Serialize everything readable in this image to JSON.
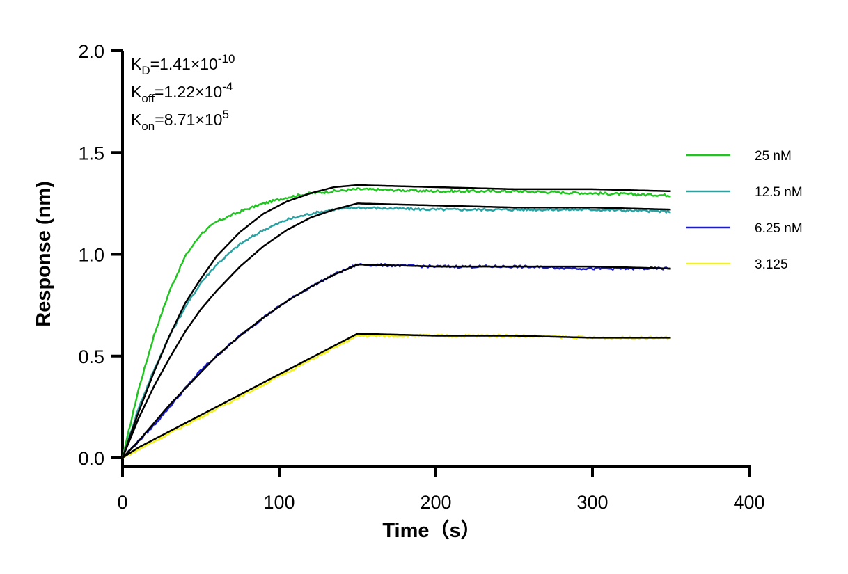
{
  "chart_data": {
    "type": "line",
    "xlabel": "Time（s）",
    "ylabel": "Response (nm)",
    "xlim": [
      0,
      400
    ],
    "ylim": [
      0,
      2.0
    ],
    "xticks": [
      "0",
      "100",
      "200",
      "300",
      "400"
    ],
    "yticks": [
      "0.0",
      "0.5",
      "1.0",
      "1.5",
      "2.0"
    ],
    "grid": false,
    "legend_position": "right",
    "association_end": 150,
    "dissociation_end": 350,
    "fit_color": "#000000",
    "series": [
      {
        "name": "25 nM",
        "color": "#22c422",
        "x": [
          0,
          10,
          20,
          30,
          40,
          50,
          60,
          75,
          90,
          105,
          120,
          135,
          150,
          200,
          250,
          300,
          350
        ],
        "measured": [
          0,
          0.33,
          0.6,
          0.82,
          0.99,
          1.1,
          1.16,
          1.21,
          1.25,
          1.28,
          1.3,
          1.31,
          1.32,
          1.31,
          1.31,
          1.3,
          1.29
        ],
        "fit": [
          0,
          0.22,
          0.42,
          0.6,
          0.76,
          0.88,
          0.99,
          1.11,
          1.2,
          1.26,
          1.3,
          1.33,
          1.34,
          1.33,
          1.32,
          1.32,
          1.31
        ]
      },
      {
        "name": "12.5 nM",
        "color": "#2aa2a2",
        "x": [
          0,
          10,
          20,
          30,
          40,
          50,
          60,
          75,
          90,
          105,
          120,
          135,
          150,
          200,
          250,
          300,
          350
        ],
        "measured": [
          0,
          0.24,
          0.43,
          0.6,
          0.74,
          0.86,
          0.95,
          1.05,
          1.12,
          1.17,
          1.2,
          1.22,
          1.23,
          1.22,
          1.22,
          1.22,
          1.21
        ],
        "fit": [
          0,
          0.19,
          0.35,
          0.49,
          0.62,
          0.73,
          0.82,
          0.94,
          1.04,
          1.12,
          1.18,
          1.22,
          1.25,
          1.24,
          1.23,
          1.23,
          1.22
        ]
      },
      {
        "name": "6.25 nM",
        "color": "#1a1ad0",
        "x": [
          0,
          10,
          20,
          30,
          40,
          50,
          60,
          75,
          90,
          105,
          120,
          135,
          150,
          200,
          250,
          300,
          350
        ],
        "measured": [
          0,
          0.08,
          0.16,
          0.25,
          0.34,
          0.43,
          0.5,
          0.6,
          0.69,
          0.77,
          0.84,
          0.9,
          0.95,
          0.94,
          0.94,
          0.93,
          0.93
        ],
        "fit": [
          0,
          0.08,
          0.17,
          0.26,
          0.34,
          0.42,
          0.5,
          0.6,
          0.69,
          0.77,
          0.84,
          0.9,
          0.95,
          0.94,
          0.94,
          0.94,
          0.93
        ]
      },
      {
        "name": "3.125",
        "color": "#f2f21c",
        "x": [
          0,
          10,
          20,
          30,
          40,
          50,
          60,
          75,
          90,
          105,
          120,
          135,
          150,
          200,
          250,
          300,
          350
        ],
        "measured": [
          0,
          0.04,
          0.08,
          0.12,
          0.16,
          0.2,
          0.24,
          0.3,
          0.36,
          0.42,
          0.48,
          0.54,
          0.6,
          0.6,
          0.6,
          0.59,
          0.59
        ],
        "fit": [
          0,
          0.05,
          0.09,
          0.13,
          0.17,
          0.21,
          0.25,
          0.31,
          0.37,
          0.43,
          0.49,
          0.55,
          0.61,
          0.6,
          0.6,
          0.59,
          0.59
        ]
      }
    ],
    "annotations": [
      {
        "base": "K",
        "sub": "D",
        "text": "=1.41×10",
        "sup": "-10"
      },
      {
        "base": "K",
        "sub": "off",
        "text": "=1.22×10",
        "sup": "-4"
      },
      {
        "base": "K",
        "sub": "on",
        "text": "=8.71×10",
        "sup": "5"
      }
    ]
  }
}
